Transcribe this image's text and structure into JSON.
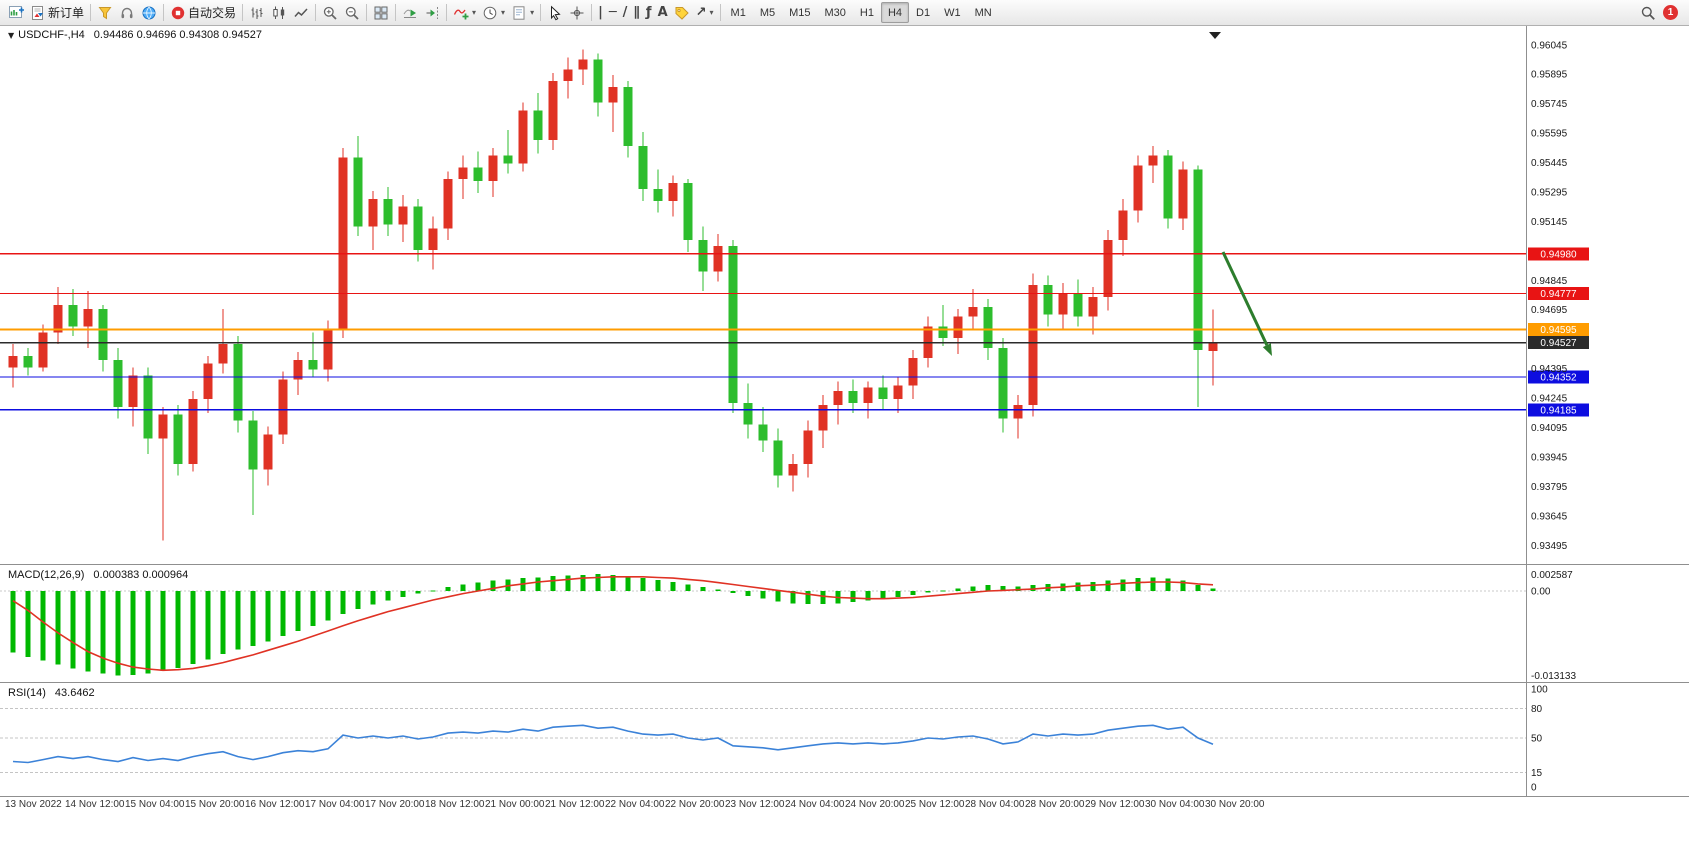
{
  "toolbar": {
    "items": [
      {
        "name": "new-chart",
        "icon": "chart-plus"
      },
      {
        "name": "new-order",
        "icon": "order-doc",
        "label": "新订单"
      },
      {
        "sep": true
      },
      {
        "name": "metaeditor",
        "icon": "funnel"
      },
      {
        "name": "support",
        "icon": "headset"
      },
      {
        "name": "community",
        "icon": "globe"
      },
      {
        "sep": true
      },
      {
        "name": "autotrading",
        "icon": "autotrading",
        "label": "自动交易"
      },
      {
        "sep": true
      },
      {
        "name": "bar-chart",
        "icon": "bars"
      },
      {
        "name": "candlestick-chart",
        "icon": "candles"
      },
      {
        "name": "line-chart",
        "icon": "line"
      },
      {
        "sep": true
      },
      {
        "name": "zoom-in",
        "icon": "zoom-in"
      },
      {
        "name": "zoom-out",
        "icon": "zoom-out"
      },
      {
        "sep": true
      },
      {
        "name": "tile-windows",
        "icon": "grid"
      },
      {
        "sep": true
      },
      {
        "name": "auto-scroll",
        "icon": "autoscroll"
      },
      {
        "name": "chart-shift",
        "icon": "chartshift"
      },
      {
        "sep": true
      },
      {
        "name": "indicators",
        "icon": "indicator-plus",
        "caret": true
      },
      {
        "name": "periods",
        "icon": "clock",
        "caret": true
      },
      {
        "name": "templates",
        "icon": "template",
        "caret": true
      },
      {
        "sep": true
      },
      {
        "name": "cursor",
        "icon": "cursor"
      },
      {
        "name": "crosshair",
        "icon": "crosshair"
      },
      {
        "sep": true
      },
      {
        "name": "vertical-line",
        "glyph": "|"
      },
      {
        "name": "horizontal-line",
        "glyph": "─"
      },
      {
        "name": "trendline",
        "glyph": "/"
      },
      {
        "name": "equidistant-channel",
        "glyph": "∥"
      },
      {
        "name": "fibonacci",
        "glyph": "ƒ"
      },
      {
        "name": "text",
        "glyph": "A"
      },
      {
        "name": "text-label",
        "icon": "tag"
      },
      {
        "name": "arrows",
        "glyph": "↗",
        "caret": true
      },
      {
        "sep": true
      }
    ],
    "timeframes": [
      "M1",
      "M5",
      "M15",
      "M30",
      "H1",
      "H4",
      "D1",
      "W1",
      "MN"
    ],
    "active_timeframe": "H4",
    "right": {
      "search_icon": "magnifier",
      "notification_count": "1"
    }
  },
  "chart": {
    "symbol_period": "USDCHF-,H4",
    "ohlc_text": "0.94486 0.94696 0.94308 0.94527",
    "price_scale": [
      "0.96045",
      "0.95895",
      "0.95745",
      "0.95595",
      "0.95445",
      "0.95295",
      "0.95145",
      "0.94995",
      "0.94845",
      "0.94695",
      "0.94545",
      "0.94395",
      "0.94245",
      "0.94095",
      "0.93945",
      "0.93795",
      "0.93645",
      "0.93495"
    ],
    "time_scale": [
      "13 Nov 2022",
      "14 Nov 12:00",
      "15 Nov 04:00",
      "15 Nov 20:00",
      "16 Nov 12:00",
      "17 Nov 04:00",
      "17 Nov 20:00",
      "18 Nov 12:00",
      "21 Nov 00:00",
      "21 Nov 12:00",
      "22 Nov 04:00",
      "22 Nov 20:00",
      "23 Nov 12:00",
      "24 Nov 04:00",
      "24 Nov 20:00",
      "25 Nov 12:00",
      "28 Nov 04:00",
      "28 Nov 20:00",
      "29 Nov 12:00",
      "30 Nov 04:00",
      "30 Nov 20:00"
    ],
    "hlines": [
      {
        "price": 0.9498,
        "label": "0.94980",
        "color": "#e81414",
        "width": 1.2
      },
      {
        "price": 0.94777,
        "label": "0.94777",
        "color": "#e81414",
        "width": 1.2
      },
      {
        "price": 0.94595,
        "label": "0.94595",
        "color": "#ff9c00",
        "width": 2
      },
      {
        "price": 0.94527,
        "label": "0.94527",
        "color": "#2b2b2b",
        "width": 1.2
      },
      {
        "price": 0.94352,
        "label": "0.94352",
        "color": "#0d0de0",
        "width": 1.2
      },
      {
        "price": 0.94185,
        "label": "0.94185",
        "color": "#0d0de0",
        "width": 1.2
      }
    ]
  },
  "indicators": {
    "macd": {
      "label": "MACD(12,26,9)",
      "values_text": "0.000383 0.000964",
      "scale": [
        {
          "label": "0.002587",
          "value": 0.002587
        },
        {
          "label": "0.00",
          "value": 0
        },
        {
          "label": "-0.013133",
          "value": -0.013133
        }
      ]
    },
    "rsi": {
      "label": "RSI(14)",
      "value": "43.6462",
      "scale": [
        {
          "label": "100",
          "value": 100
        },
        {
          "label": "80",
          "value": 80
        },
        {
          "label": "50",
          "value": 50
        },
        {
          "label": "15",
          "value": 15
        },
        {
          "label": "0",
          "value": 0
        }
      ],
      "levels": [
        80,
        50,
        15
      ]
    }
  },
  "chart_data": {
    "type": "candlestick",
    "symbol": "USDCHF-",
    "period": "H4",
    "candles": [
      [
        0.944,
        0.9452,
        0.943,
        0.9446
      ],
      [
        0.9446,
        0.945,
        0.9436,
        0.944
      ],
      [
        0.944,
        0.9462,
        0.9438,
        0.9458
      ],
      [
        0.9458,
        0.9481,
        0.9452,
        0.9472
      ],
      [
        0.9472,
        0.948,
        0.9456,
        0.9461
      ],
      [
        0.9461,
        0.9479,
        0.945,
        0.947
      ],
      [
        0.947,
        0.9472,
        0.9438,
        0.9444
      ],
      [
        0.9444,
        0.945,
        0.9414,
        0.942
      ],
      [
        0.942,
        0.944,
        0.941,
        0.9436
      ],
      [
        0.9436,
        0.944,
        0.9396,
        0.9404
      ],
      [
        0.9404,
        0.942,
        0.9352,
        0.9416
      ],
      [
        0.9416,
        0.9421,
        0.9385,
        0.9391
      ],
      [
        0.9391,
        0.9428,
        0.9387,
        0.9424
      ],
      [
        0.9424,
        0.9446,
        0.9417,
        0.9442
      ],
      [
        0.9442,
        0.947,
        0.9437,
        0.9452
      ],
      [
        0.9452,
        0.9456,
        0.9407,
        0.9413
      ],
      [
        0.9413,
        0.9418,
        0.9365,
        0.9388
      ],
      [
        0.9388,
        0.941,
        0.938,
        0.9406
      ],
      [
        0.9406,
        0.9438,
        0.9401,
        0.9434
      ],
      [
        0.9434,
        0.9448,
        0.9426,
        0.9444
      ],
      [
        0.9444,
        0.9458,
        0.9435,
        0.9439
      ],
      [
        0.9439,
        0.9464,
        0.9433,
        0.946
      ],
      [
        0.946,
        0.9552,
        0.9455,
        0.9547
      ],
      [
        0.9547,
        0.9558,
        0.9507,
        0.9512
      ],
      [
        0.9512,
        0.953,
        0.95,
        0.9526
      ],
      [
        0.9526,
        0.9532,
        0.9507,
        0.9513
      ],
      [
        0.9513,
        0.9528,
        0.9504,
        0.9522
      ],
      [
        0.9522,
        0.9526,
        0.9494,
        0.95
      ],
      [
        0.95,
        0.9517,
        0.949,
        0.9511
      ],
      [
        0.9511,
        0.954,
        0.9505,
        0.9536
      ],
      [
        0.9536,
        0.9548,
        0.9526,
        0.9542
      ],
      [
        0.9542,
        0.955,
        0.9529,
        0.9535
      ],
      [
        0.9535,
        0.9552,
        0.9527,
        0.9548
      ],
      [
        0.9548,
        0.9561,
        0.9539,
        0.9544
      ],
      [
        0.9544,
        0.9575,
        0.954,
        0.9571
      ],
      [
        0.9571,
        0.958,
        0.9549,
        0.9556
      ],
      [
        0.9556,
        0.959,
        0.9551,
        0.9586
      ],
      [
        0.9586,
        0.9598,
        0.9577,
        0.9592
      ],
      [
        0.9592,
        0.9602,
        0.9584,
        0.9597
      ],
      [
        0.9597,
        0.96,
        0.9568,
        0.9575
      ],
      [
        0.9575,
        0.9589,
        0.956,
        0.9583
      ],
      [
        0.9583,
        0.9586,
        0.9547,
        0.9553
      ],
      [
        0.9553,
        0.956,
        0.9525,
        0.9531
      ],
      [
        0.9531,
        0.9541,
        0.9519,
        0.9525
      ],
      [
        0.9525,
        0.9538,
        0.9517,
        0.9534
      ],
      [
        0.9534,
        0.9536,
        0.9499,
        0.9505
      ],
      [
        0.9505,
        0.9512,
        0.9479,
        0.9489
      ],
      [
        0.9489,
        0.9508,
        0.9484,
        0.9502
      ],
      [
        0.9502,
        0.9505,
        0.9417,
        0.9422
      ],
      [
        0.9422,
        0.9432,
        0.9404,
        0.9411
      ],
      [
        0.9411,
        0.942,
        0.9397,
        0.9403
      ],
      [
        0.9403,
        0.9409,
        0.9379,
        0.9385
      ],
      [
        0.9385,
        0.9396,
        0.9377,
        0.9391
      ],
      [
        0.9391,
        0.9413,
        0.9384,
        0.9408
      ],
      [
        0.9408,
        0.9426,
        0.9399,
        0.9421
      ],
      [
        0.9421,
        0.9433,
        0.9411,
        0.9428
      ],
      [
        0.9428,
        0.9434,
        0.9417,
        0.9422
      ],
      [
        0.9422,
        0.9433,
        0.9414,
        0.943
      ],
      [
        0.943,
        0.9436,
        0.9419,
        0.9424
      ],
      [
        0.9424,
        0.9435,
        0.9417,
        0.9431
      ],
      [
        0.9431,
        0.9449,
        0.9424,
        0.9445
      ],
      [
        0.9445,
        0.9466,
        0.944,
        0.9461
      ],
      [
        0.9461,
        0.9472,
        0.9451,
        0.9455
      ],
      [
        0.9455,
        0.947,
        0.9447,
        0.9466
      ],
      [
        0.9466,
        0.948,
        0.9459,
        0.9471
      ],
      [
        0.9471,
        0.9475,
        0.9444,
        0.945
      ],
      [
        0.945,
        0.9455,
        0.9407,
        0.9414
      ],
      [
        0.9414,
        0.9426,
        0.9404,
        0.9421
      ],
      [
        0.9421,
        0.9488,
        0.9415,
        0.9482
      ],
      [
        0.9482,
        0.9487,
        0.9461,
        0.9467
      ],
      [
        0.9467,
        0.9483,
        0.9459,
        0.9478
      ],
      [
        0.9478,
        0.9485,
        0.9461,
        0.9466
      ],
      [
        0.9466,
        0.9481,
        0.9457,
        0.9476
      ],
      [
        0.9476,
        0.951,
        0.9469,
        0.9505
      ],
      [
        0.9505,
        0.9526,
        0.9497,
        0.952
      ],
      [
        0.952,
        0.9548,
        0.9514,
        0.9543
      ],
      [
        0.9543,
        0.9553,
        0.9534,
        0.9548
      ],
      [
        0.9548,
        0.9551,
        0.9511,
        0.9516
      ],
      [
        0.9516,
        0.9545,
        0.951,
        0.9541
      ],
      [
        0.9541,
        0.9543,
        0.942,
        0.9449
      ],
      [
        0.94486,
        0.94696,
        0.94308,
        0.94527
      ]
    ],
    "macd_histogram": [
      -0.0095,
      -0.0102,
      -0.0108,
      -0.0114,
      -0.012,
      -0.0125,
      -0.0128,
      -0.0131,
      -0.013,
      -0.0128,
      -0.0124,
      -0.0119,
      -0.0113,
      -0.0106,
      -0.0098,
      -0.0091,
      -0.0085,
      -0.0078,
      -0.007,
      -0.0062,
      -0.0054,
      -0.0046,
      -0.0036,
      -0.0028,
      -0.0021,
      -0.0015,
      -0.0009,
      -0.0004,
      0.0001,
      0.0006,
      0.001,
      0.0013,
      0.0016,
      0.0018,
      0.002,
      0.0021,
      0.0023,
      0.0024,
      0.0025,
      0.0026,
      0.0025,
      0.0023,
      0.002,
      0.0017,
      0.0014,
      0.001,
      0.0006,
      0.0002,
      -0.0003,
      -0.0008,
      -0.0012,
      -0.0016,
      -0.0019,
      -0.002,
      -0.002,
      -0.0019,
      -0.0017,
      -0.0015,
      -0.0012,
      -0.0009,
      -0.0006,
      -0.0002,
      0.0001,
      0.0004,
      0.0007,
      0.0009,
      0.0008,
      0.0007,
      0.0009,
      0.0011,
      0.0012,
      0.0013,
      0.0014,
      0.0016,
      0.0018,
      0.002,
      0.0021,
      0.0019,
      0.0016,
      0.0009,
      0.000383
    ],
    "macd_signal": [
      -0.0015,
      -0.003,
      -0.0048,
      -0.0065,
      -0.008,
      -0.0094,
      -0.0104,
      -0.0112,
      -0.0118,
      -0.0121,
      -0.0123,
      -0.0122,
      -0.012,
      -0.0116,
      -0.0111,
      -0.0105,
      -0.0099,
      -0.0092,
      -0.0085,
      -0.0078,
      -0.007,
      -0.0062,
      -0.0054,
      -0.0046,
      -0.0039,
      -0.0032,
      -0.0026,
      -0.002,
      -0.0014,
      -0.0009,
      -0.0004,
      0.0,
      0.0004,
      0.0008,
      0.0011,
      0.0014,
      0.0016,
      0.0018,
      0.002,
      0.0021,
      0.0022,
      0.0022,
      0.0022,
      0.0021,
      0.002,
      0.0018,
      0.0016,
      0.0013,
      0.001,
      0.0007,
      0.0004,
      0.0001,
      -0.0002,
      -0.0005,
      -0.0008,
      -0.001,
      -0.0011,
      -0.0012,
      -0.0012,
      -0.0011,
      -0.001,
      -0.0008,
      -0.0006,
      -0.0004,
      -0.0002,
      0.0,
      0.0001,
      0.0002,
      0.0003,
      0.0005,
      0.0006,
      0.0008,
      0.0009,
      0.001,
      0.0012,
      0.0013,
      0.0014,
      0.0014,
      0.0013,
      0.0011,
      0.000964
    ],
    "rsi": [
      26,
      25,
      28,
      31,
      29,
      31,
      28,
      26,
      30,
      27,
      29,
      27,
      31,
      34,
      36,
      31,
      28,
      31,
      35,
      37,
      36,
      39,
      53,
      50,
      52,
      50,
      52,
      49,
      51,
      55,
      56,
      55,
      57,
      56,
      59,
      57,
      61,
      62,
      63,
      60,
      61,
      57,
      54,
      53,
      54,
      50,
      48,
      50,
      42,
      41,
      40,
      38,
      40,
      42,
      44,
      45,
      44,
      45,
      44,
      45,
      47,
      50,
      49,
      51,
      52,
      49,
      44,
      46,
      54,
      52,
      54,
      53,
      54,
      58,
      60,
      62,
      63,
      59,
      61,
      50,
      43.6462
    ]
  },
  "colors": {
    "bull": "#e03224",
    "bear": "#2dbd2d",
    "macd_hist": "#00b800",
    "macd_signal": "#e03224",
    "rsi_line": "#3b82d8",
    "arrow": "#2d7d2d"
  }
}
